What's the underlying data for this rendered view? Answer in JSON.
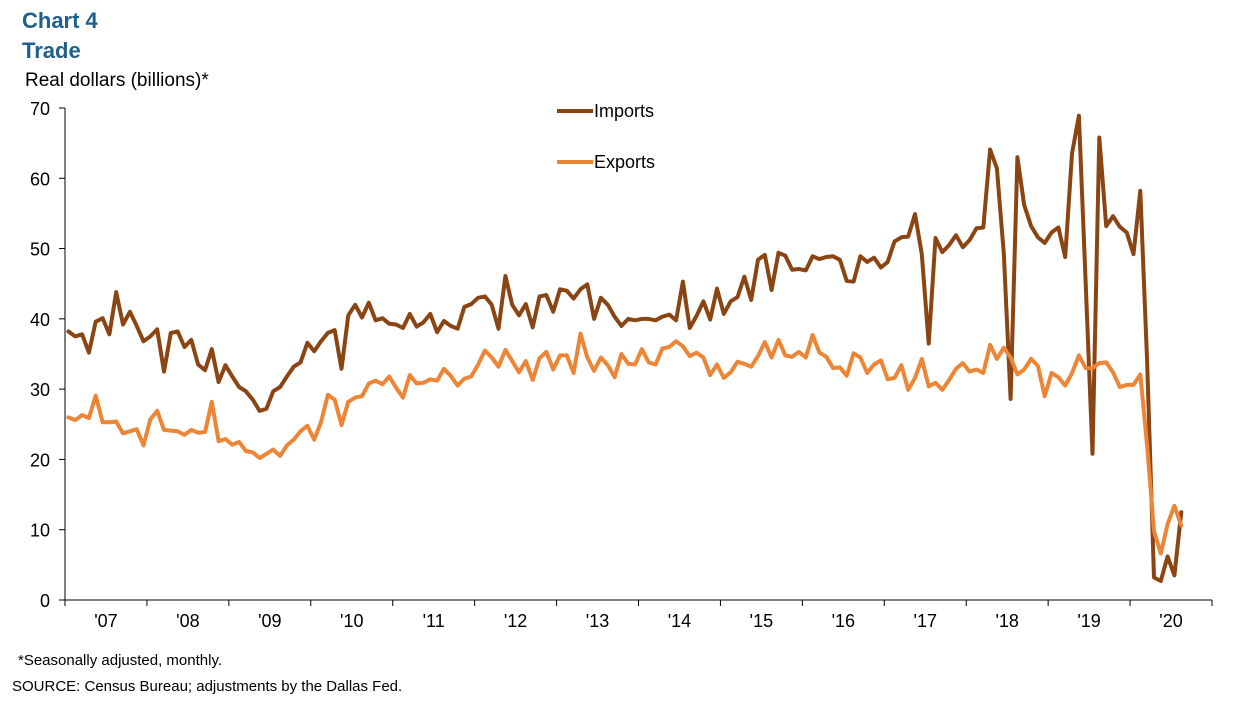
{
  "header": {
    "chart_number": "Chart 4",
    "title": "Trade",
    "y_axis_label": "Real dollars (billions)*"
  },
  "footer": {
    "note": "*Seasonally adjusted, monthly.",
    "source": "SOURCE: Census Bureau; adjustments by the Dallas Fed."
  },
  "colors": {
    "imports": "#8B4513",
    "exports": "#ED8537",
    "title": "#1f5f8b"
  },
  "chart_data": {
    "type": "line",
    "title": "Trade",
    "ylabel": "Real dollars (billions)*",
    "xlabel": "",
    "ylim": [
      0,
      70
    ],
    "y_ticks": [
      0,
      10,
      20,
      30,
      40,
      50,
      60,
      70
    ],
    "x_tick_labels": [
      "'07",
      "'08",
      "'09",
      "'10",
      "'11",
      "'12",
      "'13",
      "'14",
      "'15",
      "'16",
      "'17",
      "'18",
      "'19",
      "'20"
    ],
    "x_start": "2007-01",
    "legend_position": "top-center",
    "grid": false,
    "series": [
      {
        "name": "Imports",
        "color": "#8B4513",
        "values": [
          38.2,
          37.5,
          37.8,
          35.2,
          39.6,
          40.1,
          37.8,
          43.8,
          39.2,
          41.0,
          39.0,
          36.8,
          37.5,
          38.5,
          32.5,
          38.0,
          38.2,
          36.0,
          37.0,
          33.5,
          32.7,
          35.7,
          31.0,
          33.4,
          31.8,
          30.3,
          29.7,
          28.5,
          26.9,
          27.2,
          29.7,
          30.3,
          31.8,
          33.2,
          33.8,
          36.6,
          35.4,
          36.8,
          38.0,
          38.4,
          32.9,
          40.5,
          42.0,
          40.2,
          42.3,
          39.8,
          40.1,
          39.3,
          39.2,
          38.7,
          40.7,
          38.9,
          39.5,
          40.7,
          38.1,
          39.7,
          39.0,
          38.6,
          41.7,
          42.1,
          43.0,
          43.2,
          42.0,
          38.6,
          46.1,
          42.0,
          40.5,
          42.1,
          38.8,
          43.2,
          43.4,
          41.0,
          44.2,
          44.0,
          42.9,
          44.2,
          44.9,
          40.0,
          43.0,
          42.0,
          40.3,
          39.0,
          40.0,
          39.8,
          40.0,
          40.0,
          39.8,
          40.3,
          40.6,
          39.8,
          45.3,
          38.7,
          40.4,
          42.5,
          39.9,
          44.3,
          40.7,
          42.5,
          43.1,
          46.0,
          42.7,
          48.4,
          49.1,
          44.1,
          49.4,
          49.0,
          47.0,
          47.1,
          46.9,
          48.9,
          48.5,
          48.8,
          48.9,
          48.4,
          45.4,
          45.3,
          48.9,
          48.1,
          48.7,
          47.3,
          48.1,
          51.0,
          51.6,
          51.7,
          54.9,
          49.2,
          36.5,
          51.5,
          49.5,
          50.5,
          51.9,
          50.2,
          51.2,
          52.9,
          53.0,
          64.1,
          61.4,
          49.3,
          28.6,
          63.0,
          56.2,
          53.2,
          51.6,
          50.8,
          52.3,
          53.0,
          48.8,
          63.5,
          68.9,
          45.0,
          20.8,
          65.8,
          53.2,
          54.6,
          53.1,
          52.3,
          49.2,
          58.2,
          34.0,
          3.2,
          2.7,
          6.2,
          3.5,
          12.5
        ]
      },
      {
        "name": "Exports",
        "color": "#ED8537",
        "values": [
          26.0,
          25.6,
          26.3,
          25.9,
          29.1,
          25.3,
          25.3,
          25.4,
          23.7,
          24.0,
          24.3,
          22.0,
          25.7,
          26.9,
          24.2,
          24.1,
          24.0,
          23.5,
          24.2,
          23.8,
          23.9,
          28.2,
          22.6,
          22.9,
          22.1,
          22.5,
          21.2,
          21.0,
          20.2,
          20.8,
          21.4,
          20.5,
          22.0,
          22.8,
          24.0,
          24.8,
          22.8,
          25.3,
          29.2,
          28.5,
          24.9,
          28.2,
          28.8,
          29.0,
          30.8,
          31.2,
          30.7,
          31.8,
          30.2,
          28.8,
          32.0,
          30.8,
          30.9,
          31.4,
          31.2,
          32.9,
          31.9,
          30.5,
          31.5,
          31.8,
          33.5,
          35.5,
          34.5,
          33.2,
          35.6,
          34.0,
          32.4,
          34.0,
          31.3,
          34.4,
          35.3,
          32.8,
          34.8,
          34.8,
          32.3,
          37.9,
          34.5,
          32.6,
          34.5,
          33.4,
          31.7,
          35.0,
          33.6,
          33.5,
          35.7,
          33.8,
          33.5,
          35.8,
          36.0,
          36.8,
          36.1,
          34.7,
          35.2,
          34.5,
          32.0,
          33.5,
          31.6,
          32.4,
          33.9,
          33.6,
          33.2,
          34.7,
          36.7,
          34.5,
          37.0,
          34.8,
          34.6,
          35.3,
          34.5,
          37.7,
          35.2,
          34.6,
          33.0,
          33.1,
          31.9,
          35.1,
          34.5,
          32.3,
          33.5,
          34.1,
          31.4,
          31.6,
          33.4,
          29.9,
          31.6,
          34.3,
          30.4,
          30.9,
          29.9,
          31.3,
          32.9,
          33.7,
          32.5,
          32.8,
          32.3,
          36.3,
          34.3,
          35.9,
          34.5,
          32.1,
          32.8,
          34.3,
          33.3,
          29.0,
          32.3,
          31.7,
          30.5,
          32.3,
          34.8,
          33.0,
          33.0,
          33.7,
          33.8,
          32.4,
          30.3,
          30.6,
          30.6,
          32.1,
          22.0,
          9.8,
          6.6,
          10.8,
          13.4,
          10.6
        ]
      }
    ]
  }
}
